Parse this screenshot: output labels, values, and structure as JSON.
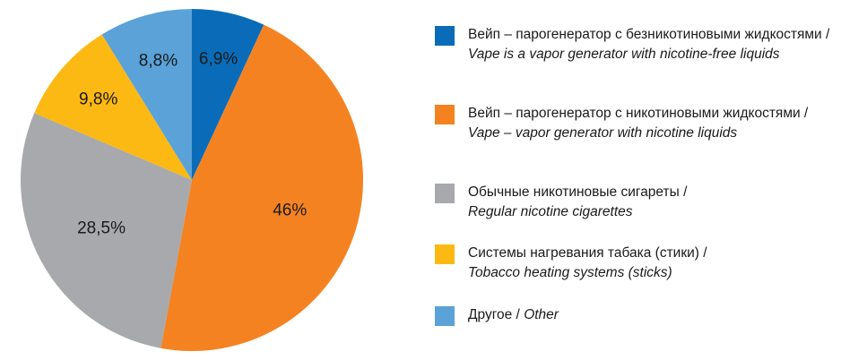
{
  "chart_data": {
    "type": "pie",
    "categories": [
      "Вейп – парогенератор с безникотиновыми жидкостями /",
      "Вейп – парогенератор с никотиновыми жидкостями /",
      "Обычные никотиновые сигареты /",
      "Системы нагревания табака (стики) /",
      "Другое /"
    ],
    "categories_en": [
      "Vape is a vapor generator with nicotine-free liquids",
      "Vape – vapor generator with nicotine liquids",
      "Regular nicotine cigarettes",
      "Tobacco heating systems (sticks)",
      "Other"
    ],
    "values": [
      6.9,
      46,
      28.5,
      9.8,
      8.8
    ],
    "value_labels": [
      "6,9%",
      "46%",
      "28,5%",
      "9,8%",
      "8,8%"
    ],
    "colors": [
      "#0a6cb8",
      "#f58220",
      "#a7a9ac",
      "#fdb913",
      "#5aa2d8"
    ]
  }
}
